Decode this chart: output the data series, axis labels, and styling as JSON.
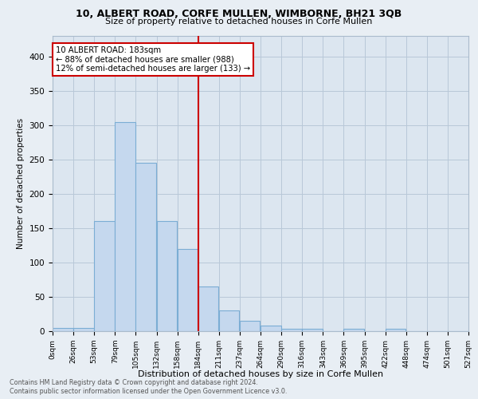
{
  "title1": "10, ALBERT ROAD, CORFE MULLEN, WIMBORNE, BH21 3QB",
  "title2": "Size of property relative to detached houses in Corfe Mullen",
  "xlabel": "Distribution of detached houses by size in Corfe Mullen",
  "ylabel": "Number of detached properties",
  "footer1": "Contains HM Land Registry data © Crown copyright and database right 2024.",
  "footer2": "Contains public sector information licensed under the Open Government Licence v3.0.",
  "bin_labels": [
    "0sqm",
    "26sqm",
    "53sqm",
    "79sqm",
    "105sqm",
    "132sqm",
    "158sqm",
    "184sqm",
    "211sqm",
    "237sqm",
    "264sqm",
    "290sqm",
    "316sqm",
    "343sqm",
    "369sqm",
    "395sqm",
    "422sqm",
    "448sqm",
    "474sqm",
    "501sqm",
    "527sqm"
  ],
  "bar_heights": [
    5,
    5,
    160,
    305,
    245,
    160,
    120,
    65,
    30,
    15,
    8,
    3,
    3,
    0,
    3,
    0,
    3,
    0,
    0,
    0
  ],
  "bar_color": "#c5d8ee",
  "bar_edge_color": "#7badd4",
  "property_line_bin": 7,
  "property_line_color": "#cc0000",
  "annotation_text": "10 ALBERT ROAD: 183sqm\n← 88% of detached houses are smaller (988)\n12% of semi-detached houses are larger (133) →",
  "annotation_box_color": "#cc0000",
  "annotation_text_color": "#000000",
  "ylim": [
    0,
    430
  ],
  "background_color": "#e8eef4",
  "plot_bg_color": "#dce6f0",
  "grid_color": "#b8c8d8",
  "yticks": [
    0,
    50,
    100,
    150,
    200,
    250,
    300,
    350,
    400
  ]
}
